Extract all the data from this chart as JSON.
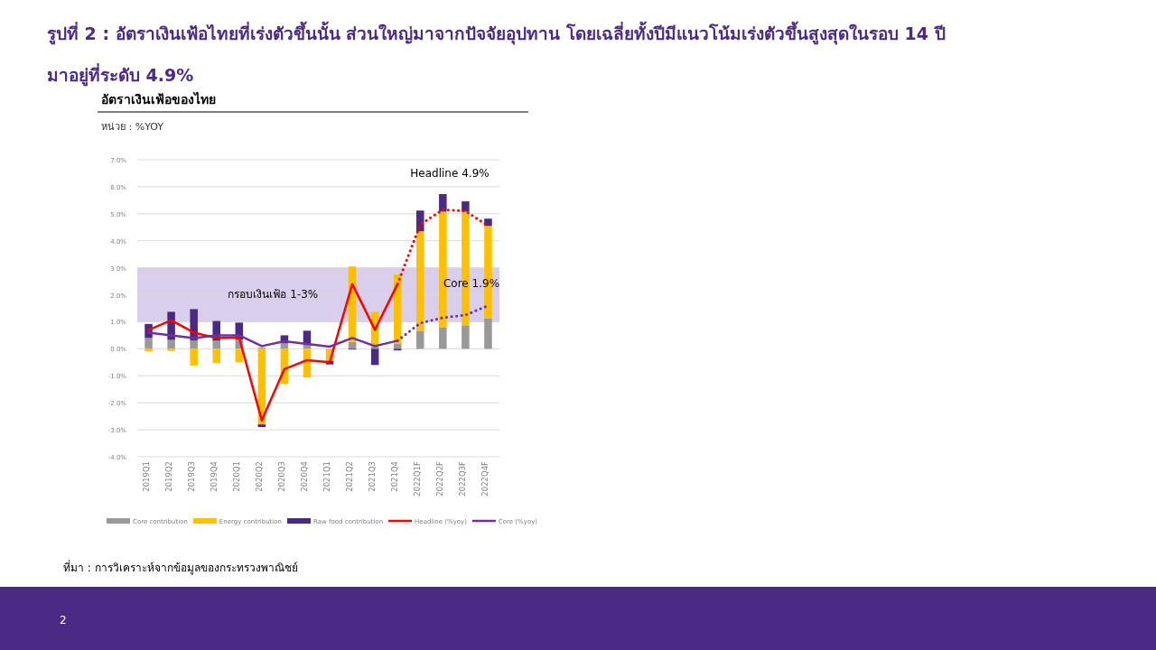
{
  "chart_data": {
    "type": "bar",
    "stacked": true,
    "title": "รูปที่ 2 : อัตราเงินเฟ้อไทยที่เร่งตัวขึ้นนั้น ส่วนใหญ่มาจากปัจจัยอุปทาน โดยเฉลี่ยทั้งปีมีแนวโน้มเร่งตัวขึ้นสูงสุดในรอบ 14 ปี มาอยู่ที่ระดับ 4.9%",
    "subtitle": "อัตราเงินเฟ้อของไทย",
    "ylabel": "หน่วย  : %YOY",
    "categories": [
      "2019Q1",
      "2019Q2",
      "2019Q3",
      "2019Q4",
      "2020Q1",
      "2020Q2",
      "2020Q3",
      "2020Q4",
      "2021Q1",
      "2021Q2",
      "2021Q3",
      "2021Q4",
      "2022Q1F",
      "2022Q2F",
      "2022Q3F",
      "2022Q4F"
    ],
    "series": [
      {
        "name": "Core contribution",
        "color": "#999999",
        "values": [
          0.4,
          0.33,
          0.31,
          0.3,
          0.34,
          0.05,
          0.2,
          0.14,
          null,
          0.25,
          0.08,
          0.2,
          0.67,
          0.8,
          0.87,
          1.13
        ]
      },
      {
        "name": "Energy contribution",
        "color": "#ffc000",
        "values": [
          -0.1,
          -0.08,
          -0.62,
          -0.53,
          -0.5,
          -2.8,
          -1.3,
          -1.06,
          -0.45,
          2.8,
          1.29,
          2.55,
          3.68,
          4.28,
          4.21,
          3.42
        ]
      },
      {
        "name": "Raw food contribution",
        "color": "#4b2a85",
        "values": [
          0.52,
          1.04,
          1.16,
          0.73,
          0.63,
          -0.1,
          0.3,
          0.53,
          -0.13,
          -0.03,
          -0.6,
          -0.06,
          0.77,
          0.65,
          0.38,
          0.27
        ]
      },
      {
        "name": "Headline (%yoy)",
        "type": "line",
        "color": "#ff0000",
        "line_style": "solid",
        "values": [
          0.7,
          1.05,
          0.6,
          0.4,
          0.42,
          -2.65,
          -0.75,
          -0.42,
          -0.5,
          2.4,
          0.7,
          2.4,
          null,
          null,
          null,
          null
        ]
      },
      {
        "name": "Core (%yoy)",
        "type": "line",
        "color": "#7030a0",
        "line_style": "solid",
        "values": [
          0.6,
          0.5,
          0.4,
          0.5,
          0.5,
          0.1,
          0.28,
          0.18,
          0.08,
          0.4,
          0.1,
          0.3,
          null,
          null,
          null,
          null
        ]
      },
      {
        "type": "line",
        "color": "#ff0000",
        "line_style": "dotted",
        "values": [
          null,
          null,
          null,
          null,
          null,
          null,
          null,
          null,
          null,
          null,
          null,
          2.4,
          4.6,
          5.15,
          5.1,
          4.55
        ]
      },
      {
        "type": "line",
        "color": "#7030a0",
        "line_style": "dotted",
        "values": [
          null,
          null,
          null,
          null,
          null,
          null,
          null,
          null,
          null,
          null,
          null,
          0.3,
          0.95,
          1.15,
          1.25,
          1.6
        ]
      }
    ],
    "ylim": [
      -4,
      7
    ],
    "yticks": [
      {
        "value": -4,
        "label": "-4.0%"
      },
      {
        "value": -3,
        "label": "-3.0%"
      },
      {
        "value": -2,
        "label": "-2.0%"
      },
      {
        "value": -1,
        "label": "-1.0%"
      },
      {
        "value": 0,
        "label": "0.0%"
      },
      {
        "value": 1,
        "label": "1.0%"
      },
      {
        "value": 2,
        "label": "2.0%"
      },
      {
        "value": 3,
        "label": "3.0%"
      },
      {
        "value": 4,
        "label": "4.0%"
      },
      {
        "value": 5,
        "label": "5.0%"
      },
      {
        "value": 6,
        "label": "6.0%"
      },
      {
        "value": 7,
        "label": "7.0%"
      }
    ],
    "bands": [
      {
        "axis": "y",
        "from": 1,
        "to": 3,
        "label": "กรอบเงินเฟ้อ 1-3%",
        "color": "#d9cfec"
      }
    ],
    "annotations": [
      "Headline 4.9%",
      "Core 1.9%",
      "ที่มา : การวิเคราะห์จากข้อมูลของกระทรวงพาณิชย์",
      "2"
    ],
    "grid": "y",
    "legend": "bottom"
  }
}
